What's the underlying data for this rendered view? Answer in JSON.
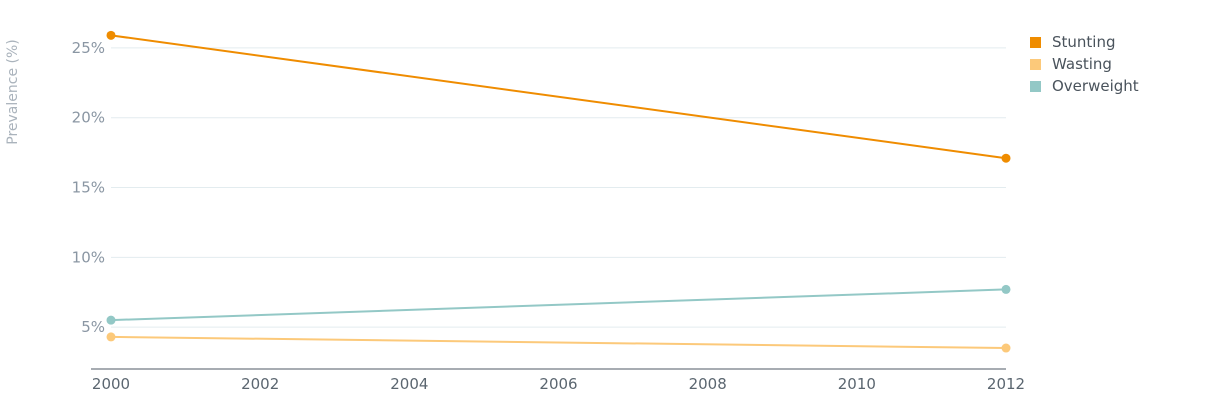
{
  "chart_data": {
    "type": "line",
    "title": "",
    "xlabel": "",
    "ylabel": "Prevalence (%)",
    "x": [
      2000,
      2012
    ],
    "xticks": [
      "2000",
      "2002",
      "2004",
      "2006",
      "2008",
      "2010",
      "2012"
    ],
    "xlim": [
      2000,
      2012
    ],
    "ylim": [
      2,
      27
    ],
    "yticks": [
      "5%",
      "10%",
      "15%",
      "20%",
      "25%"
    ],
    "ytick_values": [
      5,
      10,
      15,
      20,
      25
    ],
    "grid": true,
    "legend_position": "top-right",
    "series": [
      {
        "name": "Stunting",
        "color": "#ef8c00",
        "values": [
          25.9,
          17.1
        ]
      },
      {
        "name": "Wasting",
        "color": "#fcc97a",
        "values": [
          4.3,
          3.5
        ]
      },
      {
        "name": "Overweight",
        "color": "#93c8c6",
        "values": [
          5.5,
          7.7
        ]
      }
    ]
  }
}
